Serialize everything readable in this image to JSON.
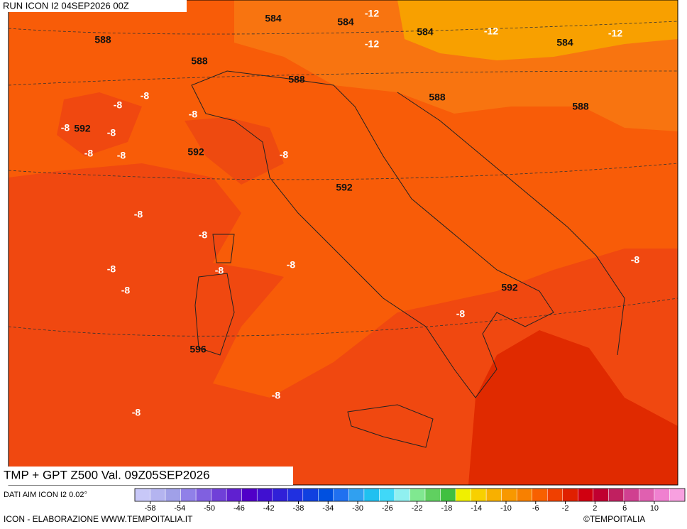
{
  "header": {
    "run": "RUN ICON I2 04SEP2026 00Z",
    "title": "TMP + GPT Z500 Val. 09Z05SEP2026"
  },
  "map": {
    "height_labels": [
      584,
      584,
      584,
      584,
      588,
      588,
      588,
      588,
      588,
      592,
      592,
      592,
      592,
      596
    ],
    "temp_labels": [
      -12,
      -12,
      -12,
      -12,
      -8,
      -8,
      -8,
      -8,
      -8,
      -8,
      -8,
      -8,
      -8,
      -8,
      -8,
      -8,
      -8,
      -8,
      -8,
      -8,
      -8,
      -8
    ]
  },
  "colorbar": {
    "source": "DATI AIM ICON I2 0.02°",
    "ticks": [
      -58,
      -54,
      -50,
      -46,
      -42,
      -38,
      -34,
      -30,
      -26,
      -22,
      -18,
      -14,
      -10,
      -6,
      -2,
      2,
      6,
      10
    ],
    "colors": [
      "#c8c8f8",
      "#b4b4f0",
      "#a0a0e8",
      "#9080e8",
      "#8060e0",
      "#7040d8",
      "#6020d0",
      "#5000c8",
      "#4010d0",
      "#3020d8",
      "#2030e0",
      "#1040e0",
      "#0050e0",
      "#2070f0",
      "#30a0f0",
      "#20c0f0",
      "#40d8f8",
      "#90f0f0",
      "#80e890",
      "#60d060",
      "#40c040",
      "#f0f000",
      "#f8d000",
      "#f8b000",
      "#f89800",
      "#f88000",
      "#f86000",
      "#f04000",
      "#e02000",
      "#d00010",
      "#c00030",
      "#c02060",
      "#d04090",
      "#e060b0",
      "#f080d0",
      "#f8a0e0"
    ]
  },
  "footer": {
    "credit": "ICON - ELABORAZIONE WWW.TEMPOITALIA.IT",
    "brand": "©TEMPOITALIA"
  }
}
